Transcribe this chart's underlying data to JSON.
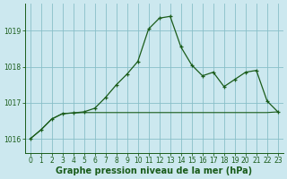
{
  "line1_x": [
    0,
    1,
    2,
    3,
    4,
    5,
    6,
    7,
    8,
    9,
    10,
    11,
    12,
    13,
    14,
    15,
    16,
    17,
    18,
    19,
    20,
    21,
    22,
    23
  ],
  "line1_y": [
    1016.0,
    1016.25,
    1016.55,
    1016.7,
    1016.72,
    1016.75,
    1016.85,
    1017.15,
    1017.5,
    1017.8,
    1018.15,
    1019.05,
    1019.35,
    1019.4,
    1018.55,
    1018.05,
    1017.75,
    1017.85,
    1017.45,
    1017.65,
    1017.85,
    1017.9,
    1017.05,
    1016.75
  ],
  "line2_x": [
    0,
    1,
    2,
    3,
    4,
    5,
    6,
    7,
    8,
    9,
    10,
    11,
    12,
    13,
    14,
    15,
    16,
    17,
    18,
    19,
    20,
    21,
    22,
    23
  ],
  "line2_y": [
    1016.0,
    1016.25,
    1016.55,
    1016.7,
    1016.72,
    1016.73,
    1016.73,
    1016.73,
    1016.73,
    1016.73,
    1016.73,
    1016.73,
    1016.73,
    1016.73,
    1016.73,
    1016.73,
    1016.73,
    1016.73,
    1016.73,
    1016.73,
    1016.73,
    1016.73,
    1016.73,
    1016.75
  ],
  "line_color": "#1a5c1a",
  "bg_color": "#cce8ef",
  "grid_color": "#88bfc8",
  "xlabel": "Graphe pression niveau de la mer (hPa)",
  "ylim": [
    1015.6,
    1019.75
  ],
  "xlim": [
    -0.5,
    23.5
  ],
  "yticks": [
    1016,
    1017,
    1018,
    1019
  ],
  "xticks": [
    0,
    1,
    2,
    3,
    4,
    5,
    6,
    7,
    8,
    9,
    10,
    11,
    12,
    13,
    14,
    15,
    16,
    17,
    18,
    19,
    20,
    21,
    22,
    23
  ],
  "tick_fontsize": 5.5,
  "xlabel_fontsize": 7.0
}
